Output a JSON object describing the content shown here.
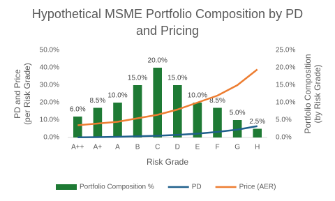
{
  "chart_data": {
    "type": "bar-line",
    "title": "Hypothetical MSME Portfolio Composition by PD and Pricing",
    "xlabel": "Risk Grade",
    "ylabel": [
      "PD and Price",
      "(per Risk Grade)"
    ],
    "y2label": [
      "Portfolio  Composition",
      "(by Risk Grade)"
    ],
    "categories": [
      "A++",
      "A+",
      "A",
      "B",
      "C",
      "D",
      "E",
      "F",
      "G",
      "H"
    ],
    "ylim": [
      0,
      50
    ],
    "yticks": [
      {
        "value": 0,
        "label": "0.0%"
      },
      {
        "value": 10,
        "label": "10.0%"
      },
      {
        "value": 20,
        "label": "20.0%"
      },
      {
        "value": 30,
        "label": "30.0%"
      },
      {
        "value": 40,
        "label": "40.0%"
      },
      {
        "value": 50,
        "label": "50.0%"
      }
    ],
    "y2lim": [
      0,
      25
    ],
    "y2ticks": [
      {
        "value": 0,
        "label": "0.0%"
      },
      {
        "value": 5,
        "label": "5.0%"
      },
      {
        "value": 10,
        "label": "10.0%"
      },
      {
        "value": 15,
        "label": "15.0%"
      },
      {
        "value": 20,
        "label": "20.0%"
      },
      {
        "value": 25,
        "label": "25.0%"
      }
    ],
    "series": [
      {
        "name": "Portfolio Composition %",
        "kind": "bar",
        "axis": "y2",
        "color": "#1e7a34",
        "values": [
          6,
          8.5,
          10,
          15,
          20,
          15,
          10,
          8.5,
          5,
          2.5
        ],
        "value_labels": [
          "6.0%",
          "8.5%",
          "10.0%",
          "15.0%",
          "20.0%",
          "15.0%",
          "10.0%",
          "8.5%",
          "5.0%",
          "2.5%"
        ]
      },
      {
        "name": "PD",
        "kind": "line",
        "color": "#1f5f8b",
        "values": [
          0.1,
          0.2,
          0.4,
          0.7,
          1.0,
          1.5,
          2.2,
          3.2,
          4.5,
          6.5
        ]
      },
      {
        "name": "Price (AER)",
        "kind": "line",
        "color": "#ed7d31",
        "values": [
          7,
          8,
          9,
          11,
          13,
          16,
          20,
          24,
          30,
          39
        ]
      }
    ]
  }
}
